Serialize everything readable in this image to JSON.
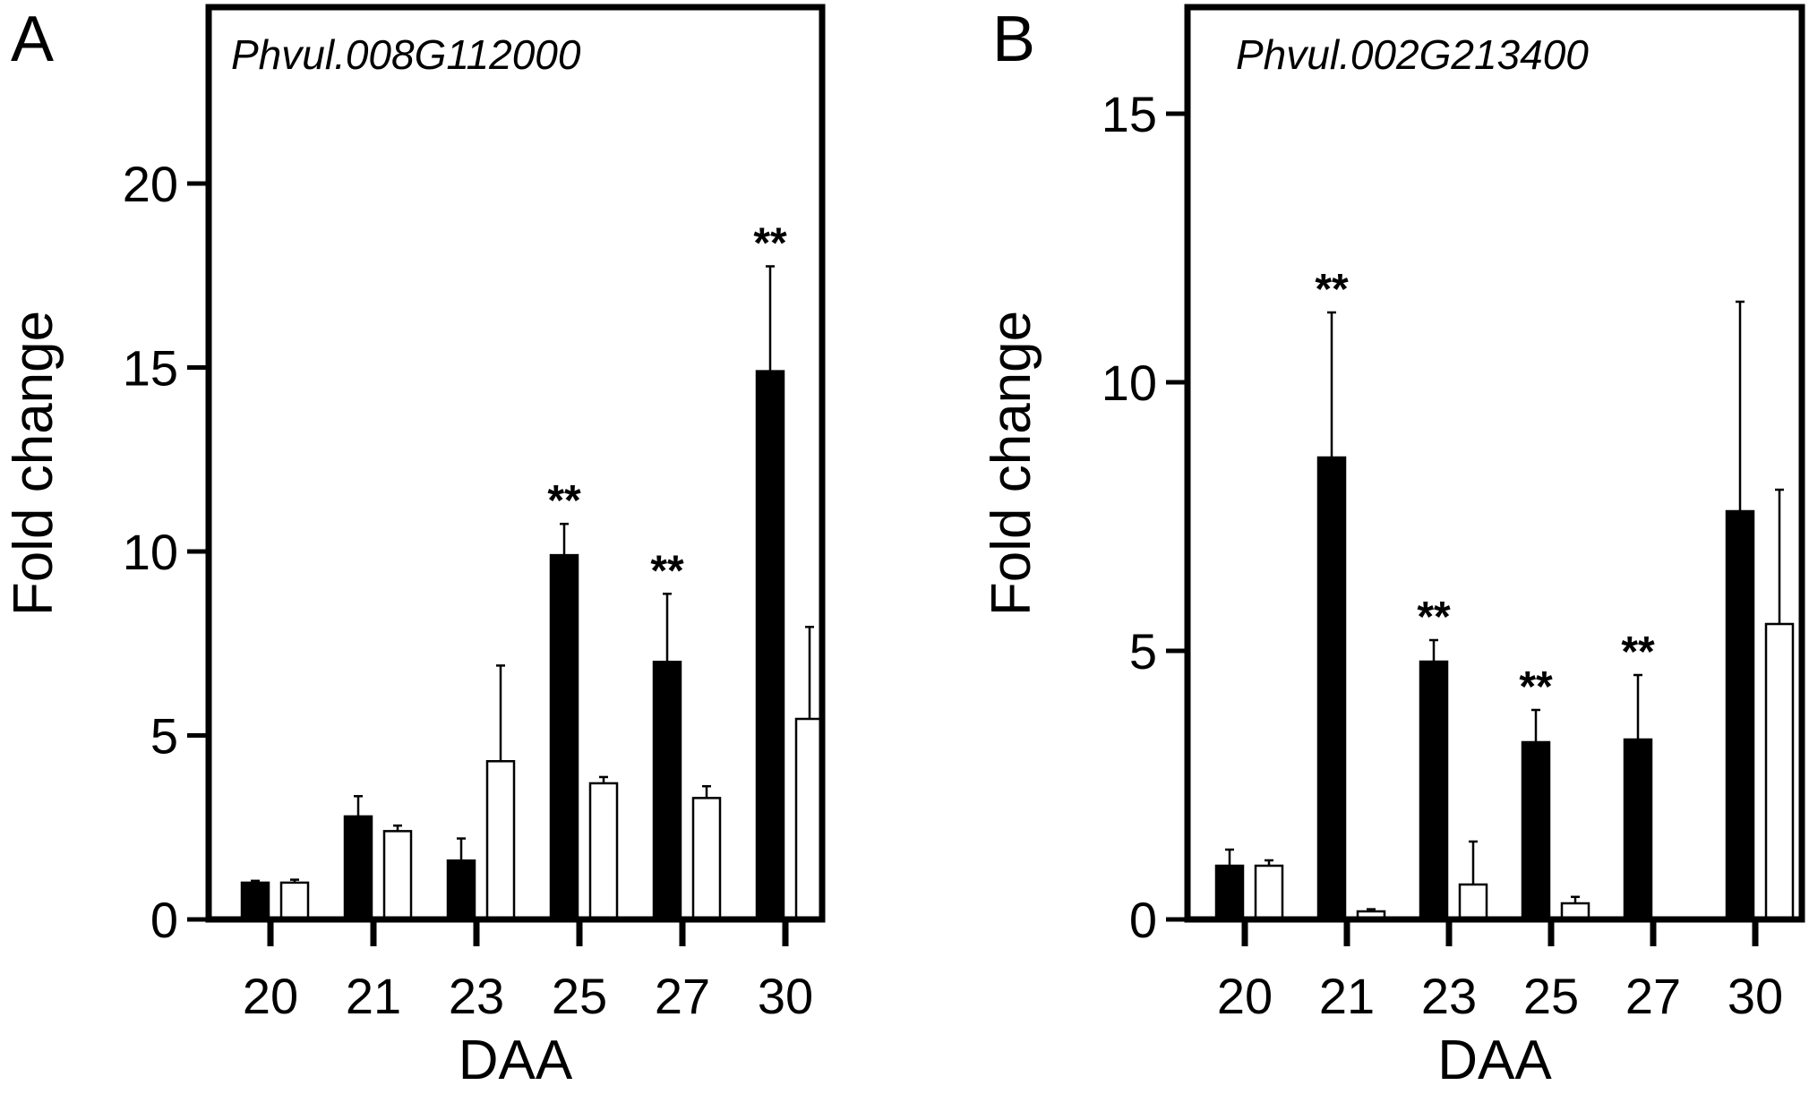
{
  "chart_data": [
    {
      "type": "bar",
      "panel": "A",
      "title": "Phvul.008G112000",
      "xlabel": "DAA",
      "ylabel": "Fold change",
      "categories": [
        "20",
        "21",
        "23",
        "25",
        "27",
        "30"
      ],
      "ylim": [
        0,
        25
      ],
      "yticks": [
        0,
        5,
        10,
        15,
        20
      ],
      "grid": false,
      "series": [
        {
          "fill": "#000000",
          "values": [
            1.0,
            2.8,
            1.6,
            9.9,
            7.0,
            14.9
          ],
          "errors": [
            0.05,
            0.55,
            0.6,
            0.85,
            1.85,
            2.85
          ]
        },
        {
          "fill": "#ffffff",
          "values": [
            1.0,
            2.4,
            4.3,
            3.7,
            3.3,
            5.45
          ],
          "errors": [
            0.08,
            0.15,
            2.6,
            0.17,
            0.32,
            2.5
          ]
        }
      ],
      "significance": [
        {
          "category_index": 3,
          "text": "**"
        },
        {
          "category_index": 4,
          "text": "**"
        },
        {
          "category_index": 5,
          "text": "**"
        }
      ]
    },
    {
      "type": "bar",
      "panel": "B",
      "title": "Phvul.002G213400",
      "xlabel": "DAA",
      "ylabel": "Fold change",
      "categories": [
        "20",
        "21",
        "23",
        "25",
        "27",
        "30"
      ],
      "ylim": [
        0,
        17
      ],
      "yticks": [
        0,
        5,
        10,
        15
      ],
      "grid": false,
      "series": [
        {
          "fill": "#000000",
          "values": [
            1.0,
            8.6,
            4.8,
            3.3,
            3.35,
            7.6
          ],
          "errors": [
            0.3,
            2.7,
            0.4,
            0.6,
            1.2,
            3.9
          ]
        },
        {
          "fill": "#ffffff",
          "values": [
            1.0,
            0.15,
            0.65,
            0.3,
            0,
            5.5
          ],
          "errors": [
            0.1,
            0.04,
            0.8,
            0.12,
            0,
            2.5
          ]
        }
      ],
      "significance": [
        {
          "category_index": 1,
          "text": "**"
        },
        {
          "category_index": 2,
          "text": "**"
        },
        {
          "category_index": 3,
          "text": "**"
        },
        {
          "category_index": 4,
          "text": "**"
        }
      ]
    }
  ]
}
